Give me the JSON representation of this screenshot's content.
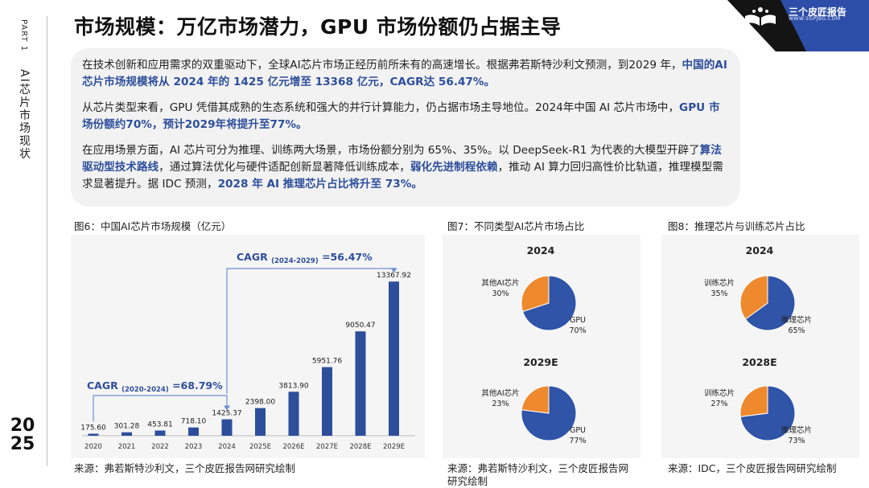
{
  "sidebar": {
    "part": "PART 1",
    "section": "AI芯片市场现状",
    "year_top": "20",
    "year_bottom": "25"
  },
  "header": {
    "title": "市场规模：万亿市场潜力，GPU 市场份额仍占据主导",
    "logo_name": "三个皮匠报告",
    "logo_url_text": "WWW.SGPJBG.COM"
  },
  "summary": {
    "p1_a": "在技术创新和应用需求的双重驱动下，全球AI芯片市场正经历前所未有的高速增长。根据弗若斯特沙利文预测，到2029 年，",
    "p1_hl": "中国的AI芯片市场规模将从 2024 年的 1425 亿元增至 13368 亿元，CAGR达 56.47%。",
    "p2_a": "从芯片类型来看，GPU 凭借其成熟的生态系统和强大的并行计算能力，仍占据市场主导地位。2024年中国 AI 芯片市场中，",
    "p2_hl": "GPU 市场份额约70%，预计2029年将提升至77%。",
    "p3_a": "在应用场景方面，AI 芯片可分为推理、训练两大场景，市场份额分别为 65%、35%。以 DeepSeek-R1 为代表的大模型开辟了",
    "p3_hl1": "算法驱动型技术路线",
    "p3_b": "，通过算法优化与硬件适配创新显著降低训练成本，",
    "p3_hl2": "弱化先进制程依赖",
    "p3_c": "，推动 AI 算力回归高性价比轨道，推理模型需求显著提升。据 IDC 预测，",
    "p3_hl3": "2028 年 AI 推理芯片占比将升至 73%。"
  },
  "figures": {
    "fig6_caption": "图6：中国AI芯片市场规模（亿元）",
    "fig7_caption": "图7：不同类型AI芯片市场占比",
    "fig8_caption": "图8：推理芯片与训练芯片占比",
    "fig6_source": "来源：弗若斯特沙利文，三个皮匠报告网研究绘制",
    "fig7_source_1": "来源：弗若斯特沙利文，三个皮匠报告网",
    "fig7_source_2": "研究绘制",
    "fig8_source": "来源：IDC，三个皮匠报告网研究绘制"
  },
  "colors": {
    "bar": "#2d4e9b",
    "accent_blue": "#2d4e9b",
    "orange": "#ee8a2d",
    "pie_blue": "#2f54a8",
    "arrow": "#6f8fcf"
  },
  "chart_data": [
    {
      "type": "bar",
      "title": "中国AI芯片市场规模（亿元）",
      "categories": [
        "2020",
        "2021",
        "2022",
        "2023",
        "2024",
        "2025E",
        "2026E",
        "2027E",
        "2028E",
        "2029E"
      ],
      "values": [
        175.6,
        301.28,
        453.81,
        718.1,
        1425.37,
        2398.0,
        3813.9,
        5951.76,
        9050.47,
        13367.92
      ],
      "value_labels": [
        "175.60",
        "301.28",
        "453.81",
        "718.10",
        "1425.37",
        "2398.00",
        "3813.90",
        "5951.76",
        "9050.47",
        "13367.92"
      ],
      "ylim": [
        0,
        14500
      ],
      "annotations": [
        {
          "prefix": "CAGR",
          "period": "(2020-2024)",
          "value": "=68.79%"
        },
        {
          "prefix": "CAGR",
          "period": "(2024-2029)",
          "value": "=56.47%"
        }
      ]
    },
    {
      "type": "pie",
      "title": "不同类型AI芯片市场占比",
      "pies": [
        {
          "year": "2024",
          "slices": [
            {
              "name": "GPU",
              "value": 70,
              "label": "70%"
            },
            {
              "name": "其他AI芯片",
              "value": 30,
              "label": "30%"
            }
          ]
        },
        {
          "year": "2029E",
          "slices": [
            {
              "name": "GPU",
              "value": 77,
              "label": "77%"
            },
            {
              "name": "其他AI芯片",
              "value": 23,
              "label": "23%"
            }
          ]
        }
      ]
    },
    {
      "type": "pie",
      "title": "推理芯片与训练芯片占比",
      "pies": [
        {
          "year": "2024",
          "slices": [
            {
              "name": "推理芯片",
              "value": 65,
              "label": "65%"
            },
            {
              "name": "训练芯片",
              "value": 35,
              "label": "35%"
            }
          ]
        },
        {
          "year": "2028E",
          "slices": [
            {
              "name": "推理芯片",
              "value": 73,
              "label": "73%"
            },
            {
              "name": "训练芯片",
              "value": 27,
              "label": "27%"
            }
          ]
        }
      ]
    }
  ]
}
